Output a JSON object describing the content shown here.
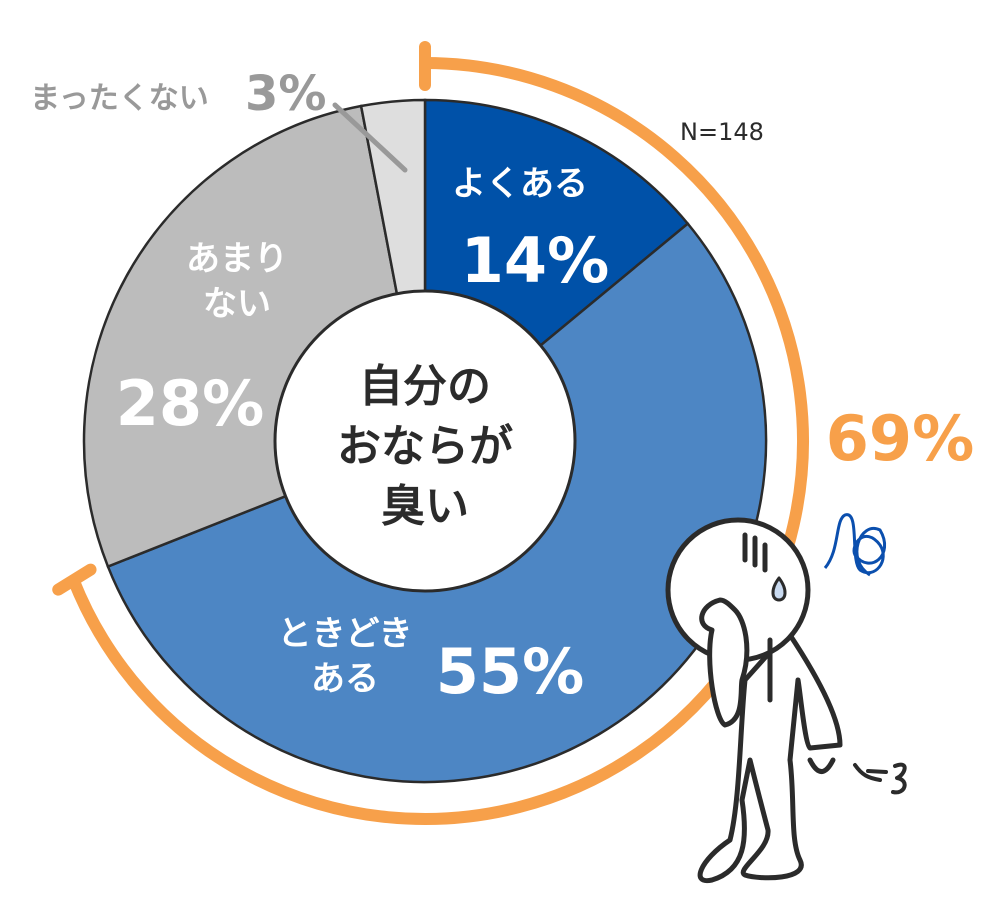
{
  "chart_data": {
    "type": "pie",
    "donut": true,
    "center_label": [
      "自分の",
      "おならが",
      "臭い"
    ],
    "note": "N=148",
    "categories": [
      "よくある",
      "ときどきある",
      "あまりない",
      "まったくない"
    ],
    "category_lines": [
      [
        "よくある"
      ],
      [
        "ときどき",
        "ある"
      ],
      [
        "あまり",
        "ない"
      ],
      [
        "まったくない"
      ]
    ],
    "values": [
      14,
      55,
      28,
      3
    ],
    "value_labels": [
      "14%",
      "55%",
      "28%",
      "3%"
    ],
    "colors": [
      "#0051a8",
      "#4d86c4",
      "#bcbcbc",
      "#dedede"
    ],
    "bracket": {
      "covers": [
        "よくある",
        "ときどきある"
      ],
      "label": "69%",
      "value": 69,
      "color": "#f7a04a"
    }
  }
}
